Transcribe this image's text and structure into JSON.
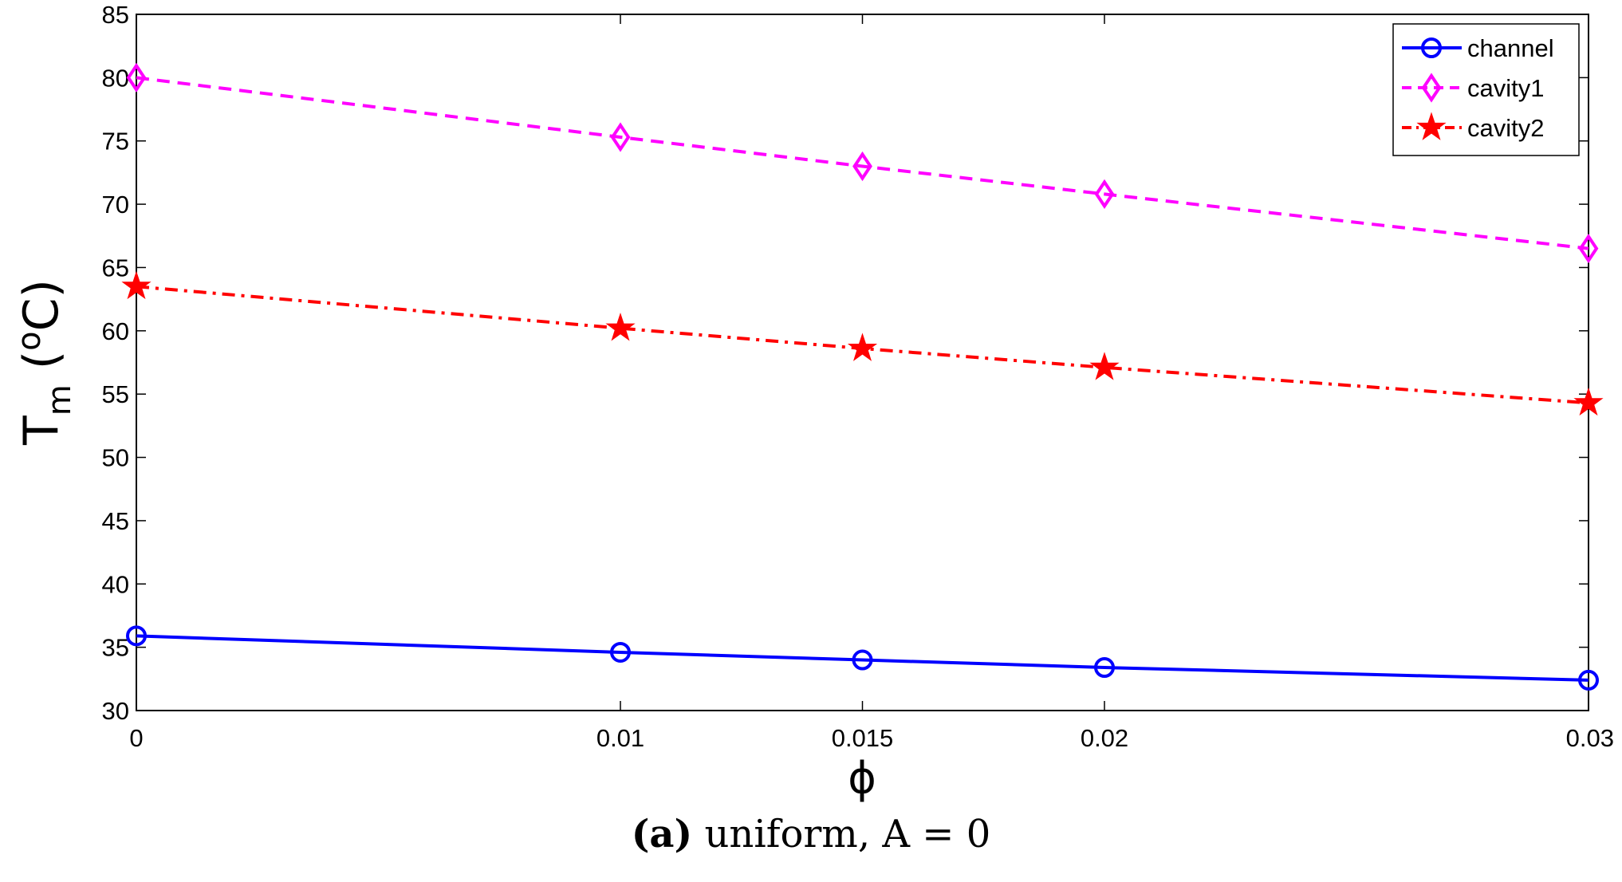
{
  "chart_data": {
    "type": "line",
    "x": [
      0,
      0.01,
      0.015,
      0.02,
      0.03
    ],
    "x_tick_labels": [
      "0",
      "0.01",
      "0.015",
      "0.02",
      "0.03"
    ],
    "xlim": [
      0,
      0.03
    ],
    "ylim": [
      30,
      85
    ],
    "y_ticks": [
      30,
      35,
      40,
      45,
      50,
      55,
      60,
      65,
      70,
      75,
      80,
      85
    ],
    "xlabel": "ϕ",
    "ylabel": {
      "main": "T",
      "subscript": "m",
      "unit_open": " (",
      "superscript": "o",
      "unit_close": "C)"
    },
    "grid": false,
    "legend_position": "top-right",
    "series": [
      {
        "name": "channel",
        "color": "#0000ff",
        "line_style": "solid",
        "marker": "circle",
        "values": [
          35.9,
          34.6,
          34.0,
          33.4,
          32.4
        ]
      },
      {
        "name": "cavity1",
        "color": "#ff00ff",
        "line_style": "dashed",
        "marker": "diamond",
        "values": [
          80.0,
          75.3,
          73.0,
          70.8,
          66.5
        ]
      },
      {
        "name": "cavity2",
        "color": "#ff0000",
        "line_style": "dash-dot",
        "marker": "star",
        "values": [
          63.5,
          60.2,
          58.6,
          57.1,
          54.3
        ]
      }
    ]
  },
  "caption": {
    "label": "(a)",
    "text": " uniform, A = 0"
  }
}
